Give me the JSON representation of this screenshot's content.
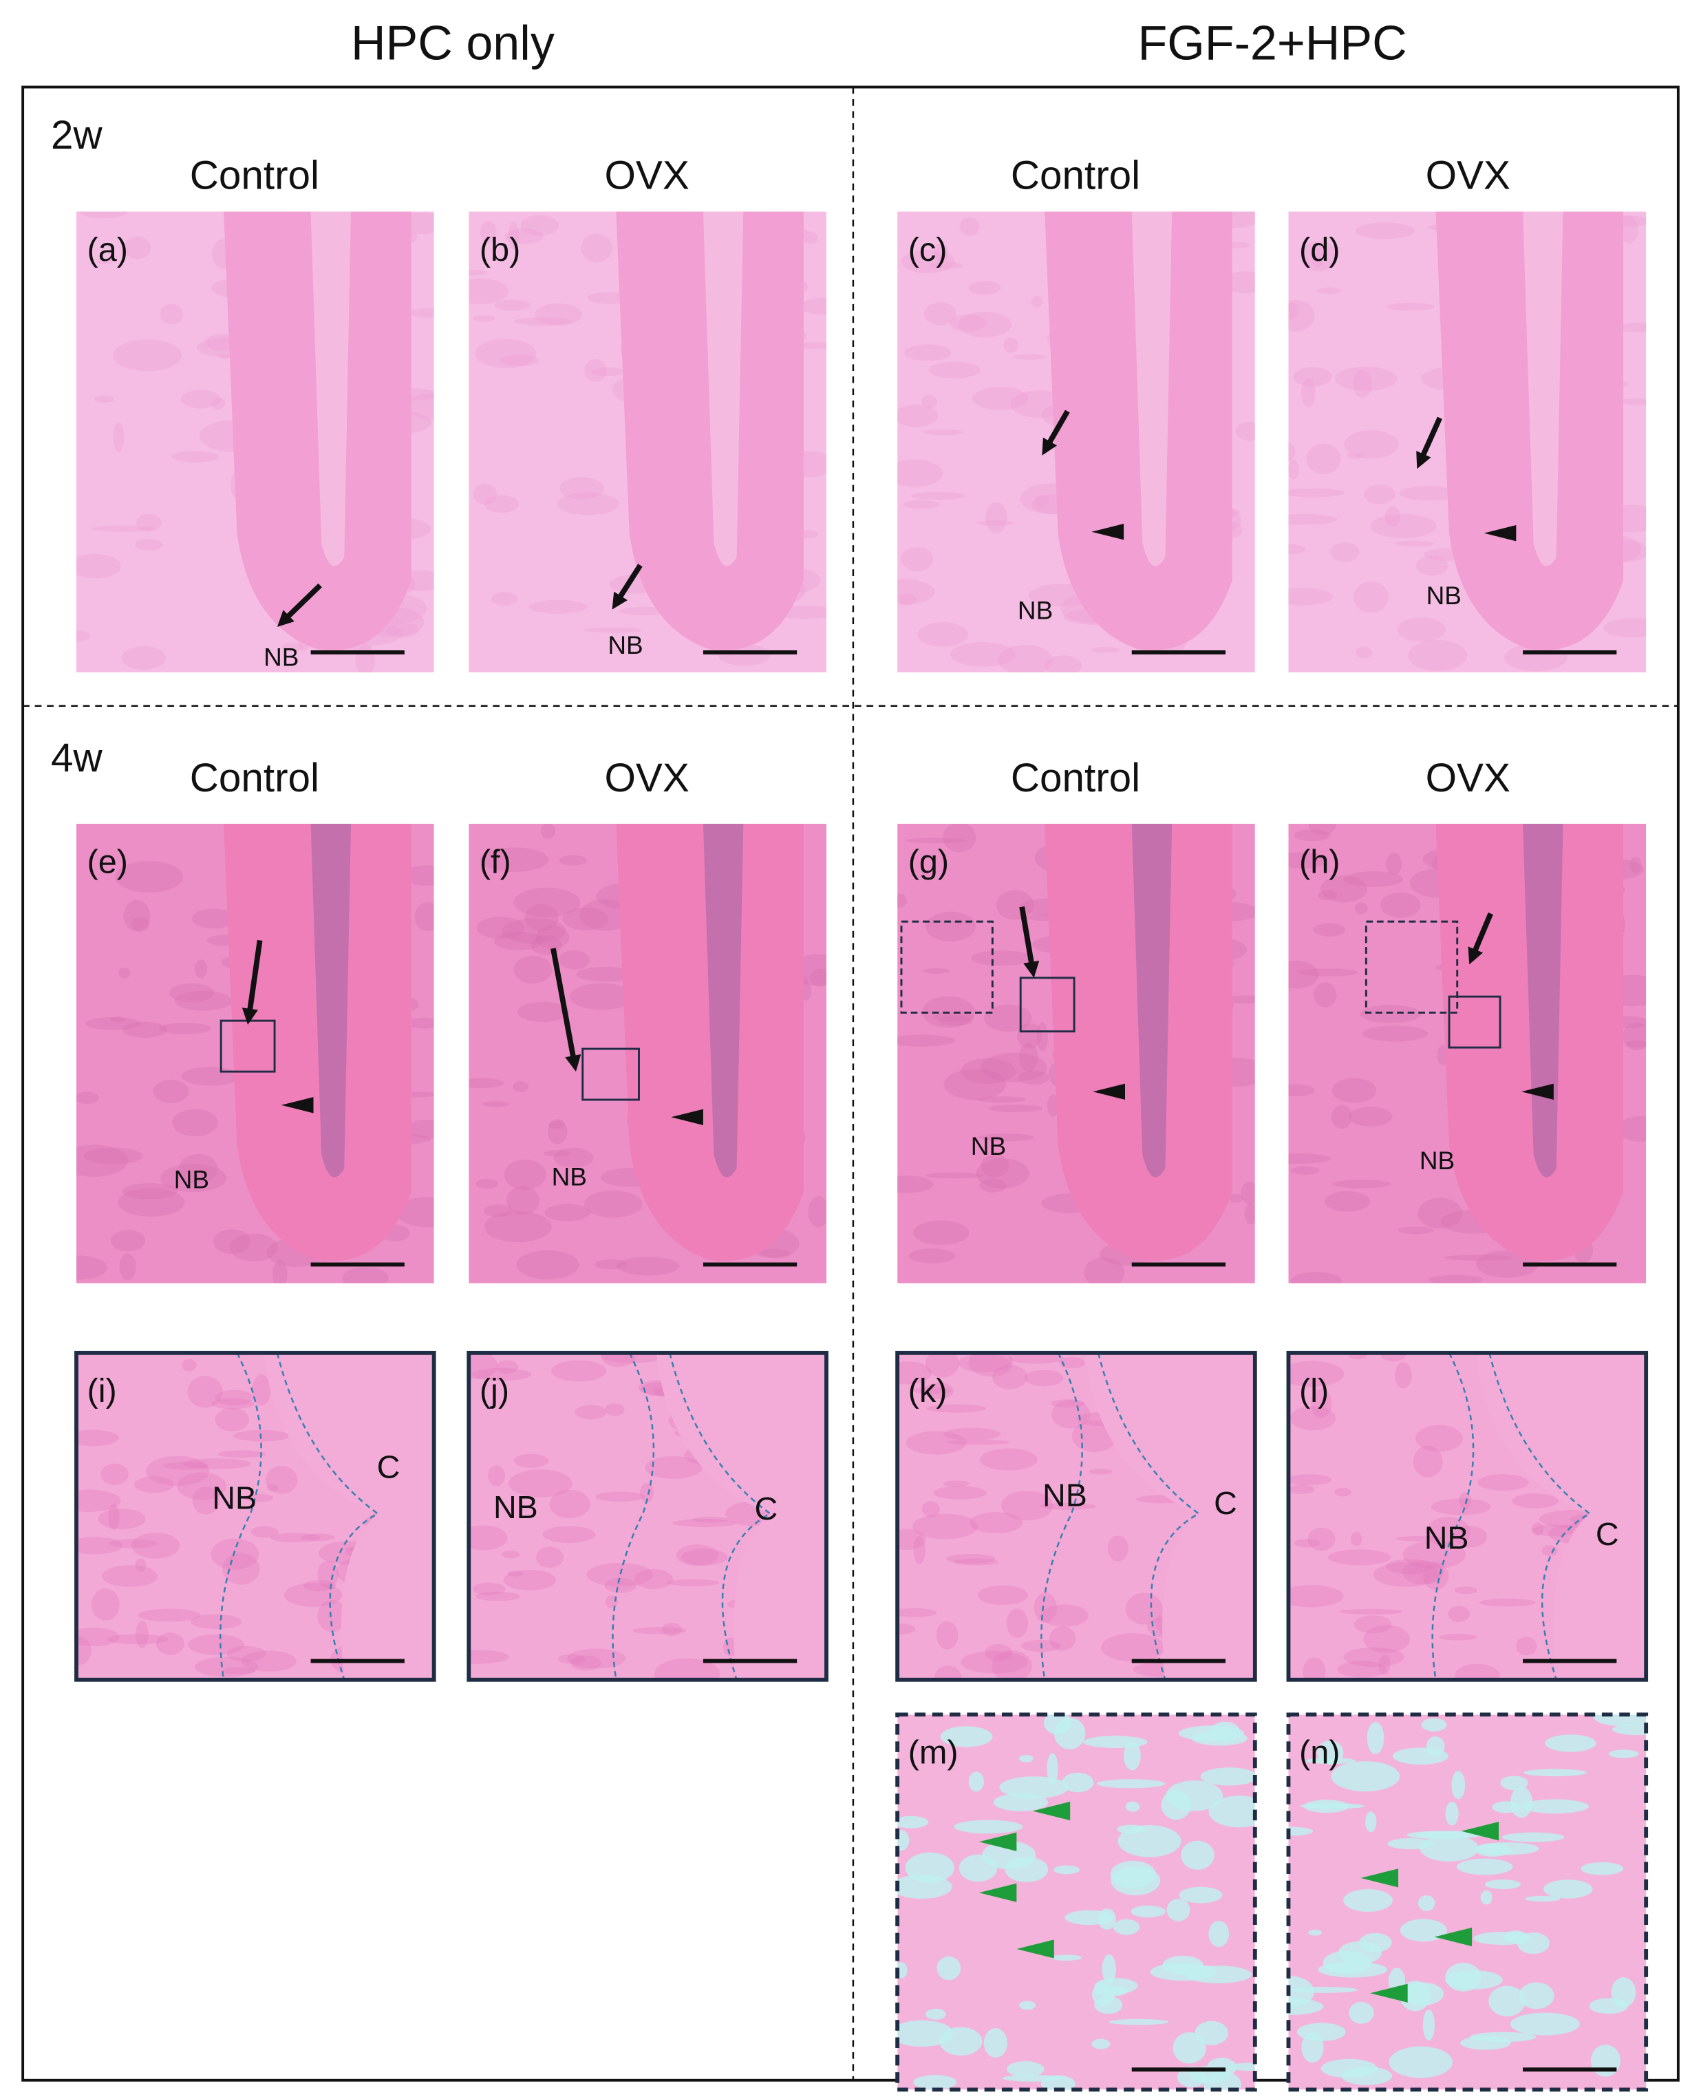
{
  "column_headers": [
    "HPC only",
    "FGF-2+HPC"
  ],
  "row_labels": [
    "2w",
    "4w"
  ],
  "group_headers": [
    [
      "Control",
      "OVX",
      "Control",
      "OVX"
    ],
    [
      "Control",
      "OVX",
      "Control",
      "OVX"
    ]
  ],
  "panels": [
    {
      "label": "(a)",
      "annotations": [
        "NB"
      ]
    },
    {
      "label": "(b)",
      "annotations": [
        "NB"
      ]
    },
    {
      "label": "(c)",
      "annotations": [
        "NB"
      ]
    },
    {
      "label": "(d)",
      "annotations": [
        "NB"
      ]
    },
    {
      "label": "(e)",
      "annotations": [
        "NB"
      ]
    },
    {
      "label": "(f)",
      "annotations": [
        "NB"
      ]
    },
    {
      "label": "(g)",
      "annotations": [
        "NB"
      ]
    },
    {
      "label": "(h)",
      "annotations": [
        "NB"
      ]
    },
    {
      "label": "(i)",
      "annotations": [
        "NB",
        "C"
      ]
    },
    {
      "label": "(j)",
      "annotations": [
        "NB",
        "C"
      ]
    },
    {
      "label": "(k)",
      "annotations": [
        "NB",
        "C"
      ]
    },
    {
      "label": "(l)",
      "annotations": [
        "NB",
        "C"
      ]
    },
    {
      "label": "(m)",
      "annotations": []
    },
    {
      "label": "(n)",
      "annotations": []
    }
  ]
}
